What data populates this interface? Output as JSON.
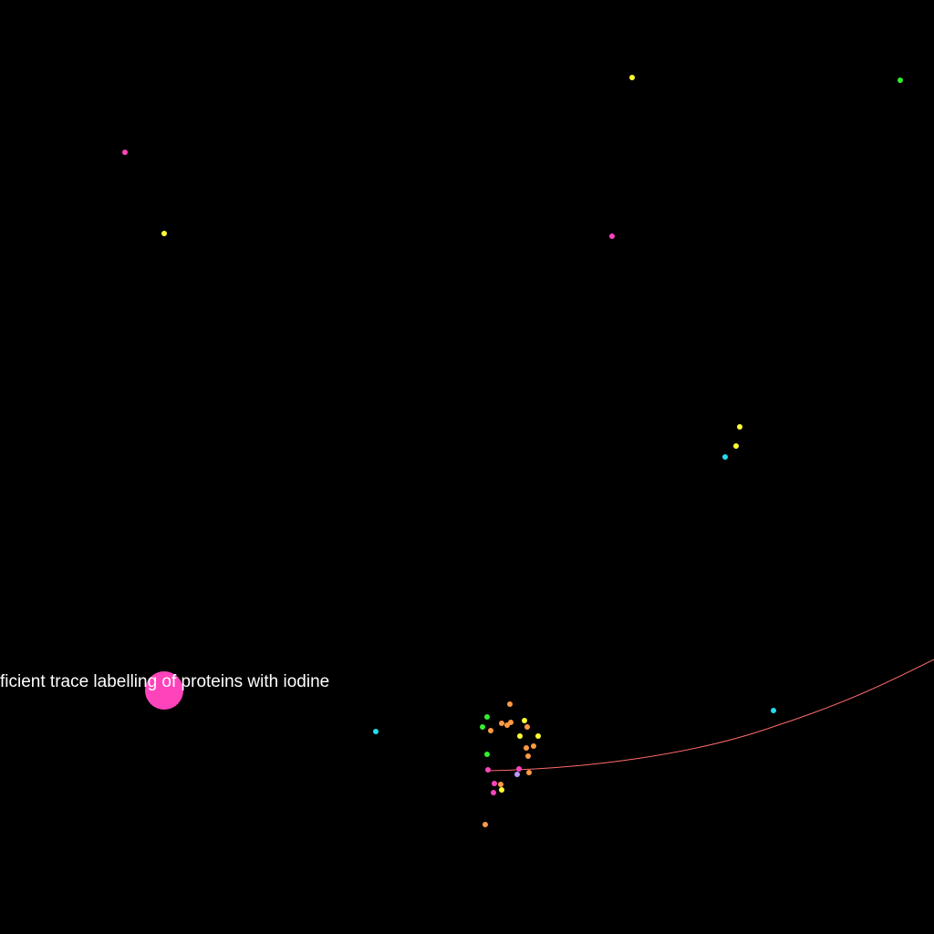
{
  "colors": {
    "background": "#000000",
    "label": "#ffffff",
    "edge": "#ff6b6b",
    "pink": "#ff44bb",
    "yellow": "#ffff33",
    "green": "#33ee33",
    "cyan": "#22ddee",
    "orange": "#ff9944",
    "lavender": "#bb99ff"
  },
  "focus": {
    "label": "ficient trace labelling of proteins with iodine",
    "color_key": "pink"
  },
  "nodes": [
    {
      "color_key": "yellow"
    },
    {
      "color_key": "green"
    },
    {
      "color_key": "pink"
    },
    {
      "color_key": "yellow"
    },
    {
      "color_key": "pink"
    },
    {
      "color_key": "yellow"
    },
    {
      "color_key": "yellow"
    },
    {
      "color_key": "cyan"
    },
    {
      "color_key": "cyan"
    },
    {
      "color_key": "cyan"
    },
    {
      "color_key": "orange"
    },
    {
      "color_key": "green"
    },
    {
      "color_key": "green"
    },
    {
      "color_key": "orange"
    },
    {
      "color_key": "orange"
    },
    {
      "color_key": "orange"
    },
    {
      "color_key": "yellow"
    },
    {
      "color_key": "orange"
    },
    {
      "color_key": "yellow"
    },
    {
      "color_key": "yellow"
    },
    {
      "color_key": "orange"
    },
    {
      "color_key": "orange"
    },
    {
      "color_key": "green"
    },
    {
      "color_key": "orange"
    },
    {
      "color_key": "orange"
    },
    {
      "color_key": "pink"
    },
    {
      "color_key": "pink"
    },
    {
      "color_key": "lavender"
    },
    {
      "color_key": "orange"
    },
    {
      "color_key": "pink"
    },
    {
      "color_key": "orange"
    },
    {
      "color_key": "yellow"
    },
    {
      "color_key": "pink"
    },
    {
      "color_key": "orange"
    }
  ],
  "edges": [
    {
      "color_key": "edge"
    }
  ]
}
